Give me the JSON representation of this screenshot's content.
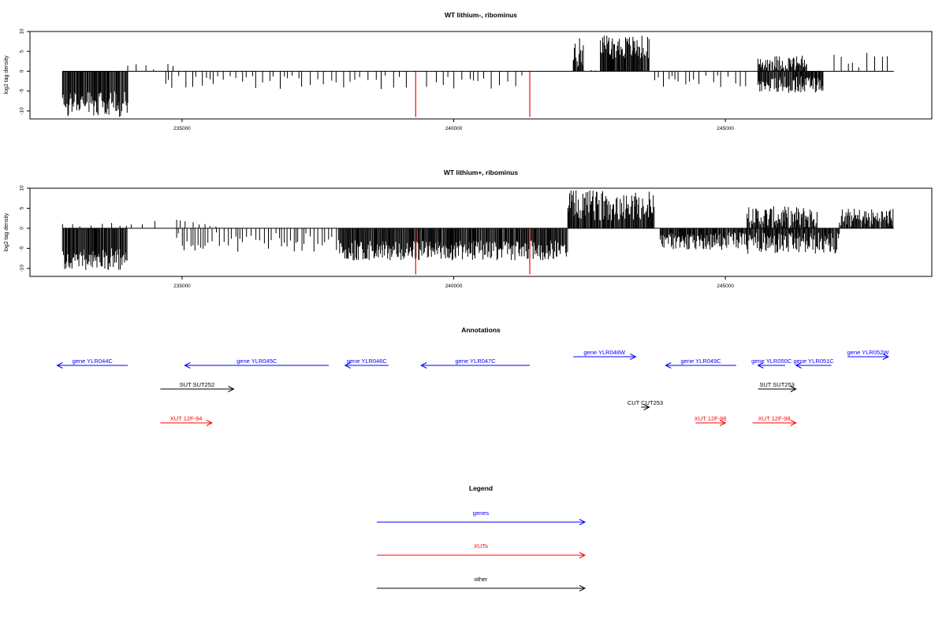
{
  "colors": {
    "genes": "#0000ff",
    "xuts": "#ff0000",
    "other": "#000000",
    "marker": "#ff0000",
    "bars": "#000000"
  },
  "chart_data": [
    {
      "type": "bar",
      "title": "WT lithium-, ribominus",
      "ylabel": "log2 tag density",
      "xlim": [
        232200,
        248800
      ],
      "ylim": [
        -12,
        10
      ],
      "xticks": [
        235000,
        240000,
        245000
      ],
      "yticks": [
        10,
        5,
        0,
        -5,
        -10
      ],
      "marker_x": [
        239300,
        241400
      ],
      "marker_y": -11.5,
      "segments": [
        {
          "x0": 232800,
          "x1": 234000,
          "y_min": -5,
          "y_max": -11.5
        },
        {
          "x0": 234000,
          "x1": 235000,
          "y_min": 0,
          "y_max": 2.5,
          "step": 150
        },
        {
          "x0": 234700,
          "x1": 237200,
          "y_min": -1,
          "y_max": -4.5,
          "step": 90
        },
        {
          "x0": 237200,
          "x1": 239200,
          "y_min": -1,
          "y_max": -4.5,
          "step": 110
        },
        {
          "x0": 239500,
          "x1": 241300,
          "y_min": -1,
          "y_max": -4.5,
          "step": 120
        },
        {
          "x0": 242200,
          "x1": 242400,
          "y_min": 1,
          "y_max": 8.5
        },
        {
          "x0": 242400,
          "x1": 242700,
          "y_min": 0,
          "y_max": 2,
          "step": 90
        },
        {
          "x0": 242700,
          "x1": 243600,
          "y_min": 3,
          "y_max": 9
        },
        {
          "x0": 243700,
          "x1": 245400,
          "y_min": -1,
          "y_max": -4,
          "step": 100
        },
        {
          "x0": 245600,
          "x1": 246500,
          "y_min": 0,
          "y_max": 4
        },
        {
          "x0": 245600,
          "x1": 246800,
          "y_min": -1,
          "y_max": -5.5
        },
        {
          "x0": 247000,
          "x1": 248000,
          "y_min": 0,
          "y_max": 5,
          "step": 110
        }
      ]
    },
    {
      "type": "bar",
      "title": "WT lithium+, ribominus",
      "ylabel": "log2 tag density",
      "xlim": [
        232200,
        248800
      ],
      "ylim": [
        -12,
        10
      ],
      "xticks": [
        235000,
        240000,
        245000
      ],
      "yticks": [
        10,
        5,
        0,
        -5,
        -10
      ],
      "marker_x": [
        239300,
        241400
      ],
      "marker_y": -11.5,
      "segments": [
        {
          "x0": 232800,
          "x1": 234000,
          "y_min": -5,
          "y_max": -10.5
        },
        {
          "x0": 232800,
          "x1": 234500,
          "y_min": 0,
          "y_max": 2,
          "step": 160
        },
        {
          "x0": 234900,
          "x1": 237900,
          "y_min": -1,
          "y_max": -6,
          "step": 60
        },
        {
          "x0": 234900,
          "x1": 235700,
          "y_min": 0,
          "y_max": 3,
          "step": 100
        },
        {
          "x0": 237900,
          "x1": 242100,
          "y_min": -3,
          "y_max": -8
        },
        {
          "x0": 242100,
          "x1": 243700,
          "y_min": 2,
          "y_max": 9.5
        },
        {
          "x0": 243800,
          "x1": 245400,
          "y_min": -1,
          "y_max": -5.5
        },
        {
          "x0": 245400,
          "x1": 246700,
          "y_min": 0,
          "y_max": 5.5
        },
        {
          "x0": 245400,
          "x1": 247100,
          "y_min": -1,
          "y_max": -6.5
        },
        {
          "x0": 247100,
          "x1": 248100,
          "y_min": 0,
          "y_max": 5
        }
      ]
    }
  ],
  "annotations": {
    "title": "Annotations",
    "items": [
      {
        "label": "gene YLR044C",
        "type": "genes",
        "x0": 232700,
        "x1": 234000,
        "dir": "left",
        "row": 0
      },
      {
        "label": "gene YLR045C",
        "type": "genes",
        "x0": 235050,
        "x1": 237700,
        "dir": "left",
        "row": 0
      },
      {
        "label": "gene YLR046C",
        "type": "genes",
        "x0": 238000,
        "x1": 238800,
        "dir": "left",
        "row": 0
      },
      {
        "label": "gene YLR047C",
        "type": "genes",
        "x0": 239400,
        "x1": 241400,
        "dir": "left",
        "row": 0
      },
      {
        "label": "gene YLR048W",
        "type": "genes",
        "x0": 242200,
        "x1": 243350,
        "dir": "right",
        "row": -1
      },
      {
        "label": "gene YLR049C",
        "type": "genes",
        "x0": 243900,
        "x1": 245200,
        "dir": "left",
        "row": 0
      },
      {
        "label": "gene YLR050C",
        "type": "genes",
        "x0": 245600,
        "x1": 246100,
        "dir": "left",
        "row": 0
      },
      {
        "label": "gene YLR051C",
        "type": "genes",
        "x0": 246300,
        "x1": 246950,
        "dir": "left",
        "row": 0
      },
      {
        "label": "gene YLR052W",
        "type": "genes",
        "x0": 247250,
        "x1": 248000,
        "dir": "right",
        "row": -1
      },
      {
        "label": "SUT SUT252",
        "type": "other",
        "x0": 234600,
        "x1": 235950,
        "dir": "right",
        "row": 1
      },
      {
        "label": "SUT SUT253",
        "type": "other",
        "x0": 245600,
        "x1": 246300,
        "dir": "right",
        "row": 1
      },
      {
        "label": "CUT CUT253",
        "type": "other",
        "x0": 243450,
        "x1": 243600,
        "dir": "right",
        "row": 2
      },
      {
        "label": "XUT 12F-94",
        "type": "xuts",
        "x0": 234600,
        "x1": 235550,
        "dir": "right",
        "row": 3
      },
      {
        "label": "XUT 12F-96",
        "type": "xuts",
        "x0": 244450,
        "x1": 245000,
        "dir": "right",
        "row": 3
      },
      {
        "label": "XUT 12F-98",
        "type": "xuts",
        "x0": 245500,
        "x1": 246300,
        "dir": "right",
        "row": 3
      }
    ]
  },
  "legend": {
    "title": "Legend",
    "items": [
      {
        "label": "genes",
        "type": "genes"
      },
      {
        "label": "XUTs",
        "type": "xuts"
      },
      {
        "label": "other",
        "type": "other"
      }
    ]
  }
}
